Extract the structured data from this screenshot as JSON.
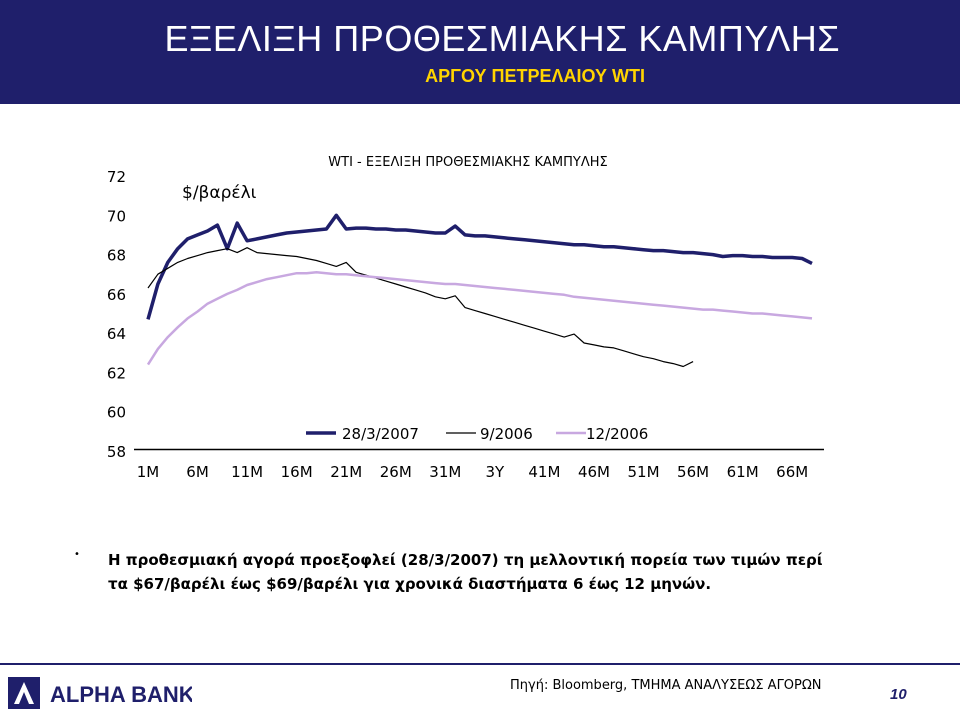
{
  "slide": {
    "title": "ΕΞΕΛΙΞΗ ΠΡΟΘΕΣΜΙΑΚΗΣ ΚΑΜΠΥΛΗΣ",
    "subtitle": "ΑΡΓΟΥ ΠΕΤΡΕΛΑΙΟΥ WTI",
    "bullet": "•",
    "note": "Η προθεσμιακή αγορά προεξοφλεί (28/3/2007) τη μελλοντική πορεία των τιμών περί τα $67/βαρέλι έως $69/βαρέλι για χρονικά διαστήματα 6 έως 12 μηνών.",
    "source": "Πηγή: Bloomberg, ΤΜΗΜΑ ΑΝΑΛΥΣΕΩΣ ΑΓΟΡΩΝ",
    "page_number": "10",
    "logo_text": "ALPHA BANK"
  },
  "colors": {
    "header_bg": "#1f1f6b",
    "subtitle": "#ffd400",
    "series_2007": "#1f1f6b",
    "series_2006_09": "#000000",
    "series_2006_12": "#c8a8e0"
  },
  "chart_data": {
    "type": "line",
    "title": "WTI - ΕΞΕΛΙΞΗ ΠΡΟΘΕΣΜΙΑΚΗΣ ΚΑΜΠΥΛΗΣ",
    "ylabel": "$/βαρέλι",
    "ylim": [
      58,
      72
    ],
    "yticks": [
      58,
      60,
      62,
      64,
      66,
      68,
      70,
      72
    ],
    "xticks": [
      "1M",
      "6M",
      "11M",
      "16M",
      "21M",
      "26M",
      "31M",
      "3Y",
      "41M",
      "46M",
      "51M",
      "56M",
      "61M",
      "66M"
    ],
    "x_unit": "months",
    "x_range": [
      1,
      68
    ],
    "grid": false,
    "legend_position": "bottom",
    "series": [
      {
        "name": "28/3/2007",
        "color": "#1f1f6b",
        "x": [
          1,
          2,
          3,
          4,
          5,
          6,
          7,
          8,
          9,
          10,
          11,
          12,
          13,
          14,
          15,
          16,
          17,
          18,
          19,
          20,
          21,
          22,
          23,
          24,
          25,
          26,
          27,
          28,
          29,
          30,
          31,
          32,
          33,
          34,
          35,
          36,
          37,
          38,
          39,
          40,
          41,
          42,
          43,
          44,
          45,
          46,
          47,
          48,
          49,
          50,
          51,
          52,
          53,
          54,
          55,
          56,
          57,
          58,
          59,
          60,
          61,
          62,
          63,
          64,
          65,
          66,
          67,
          68
        ],
        "values": [
          64.7,
          66.5,
          67.6,
          68.3,
          68.8,
          69.0,
          69.2,
          69.5,
          68.3,
          69.6,
          68.7,
          68.8,
          68.9,
          69.0,
          69.1,
          69.15,
          69.2,
          69.25,
          69.3,
          70.0,
          69.3,
          69.35,
          69.35,
          69.3,
          69.3,
          69.25,
          69.25,
          69.2,
          69.15,
          69.1,
          69.1,
          69.45,
          69.0,
          68.95,
          68.95,
          68.9,
          68.85,
          68.8,
          68.75,
          68.7,
          68.65,
          68.6,
          68.55,
          68.5,
          68.5,
          68.45,
          68.4,
          68.4,
          68.35,
          68.3,
          68.25,
          68.2,
          68.2,
          68.15,
          68.1,
          68.1,
          68.05,
          68.0,
          67.9,
          67.95,
          67.95,
          67.9,
          67.9,
          67.85,
          67.85,
          67.85,
          67.8,
          67.55
        ]
      },
      {
        "name": "9/2006",
        "color": "#000000",
        "x": [
          1,
          2,
          3,
          4,
          5,
          6,
          7,
          8,
          9,
          10,
          11,
          12,
          13,
          14,
          15,
          16,
          17,
          18,
          19,
          20,
          21,
          22,
          23,
          24,
          25,
          26,
          27,
          28,
          29,
          30,
          31,
          32,
          33,
          34,
          35,
          36,
          37,
          38,
          39,
          40,
          41,
          42,
          43,
          44,
          45,
          46,
          47,
          48,
          49,
          50,
          51,
          52,
          53,
          54,
          55,
          56
        ],
        "values": [
          66.3,
          67.0,
          67.3,
          67.6,
          67.8,
          67.95,
          68.1,
          68.2,
          68.3,
          68.1,
          68.35,
          68.1,
          68.05,
          68.0,
          67.95,
          67.9,
          67.8,
          67.7,
          67.55,
          67.4,
          67.6,
          67.1,
          66.95,
          66.8,
          66.65,
          66.5,
          66.35,
          66.2,
          66.05,
          65.85,
          65.75,
          65.9,
          65.3,
          65.15,
          65.0,
          64.85,
          64.7,
          64.55,
          64.4,
          64.25,
          64.1,
          63.95,
          63.8,
          63.95,
          63.5,
          63.4,
          63.3,
          63.25,
          63.1,
          62.95,
          62.8,
          62.7,
          62.55,
          62.45,
          62.3,
          62.55
        ]
      },
      {
        "name": "12/2006",
        "color": "#c8a8e0",
        "x": [
          1,
          2,
          3,
          4,
          5,
          6,
          7,
          8,
          9,
          10,
          11,
          12,
          13,
          14,
          15,
          16,
          17,
          18,
          19,
          20,
          21,
          22,
          23,
          24,
          25,
          26,
          27,
          28,
          29,
          30,
          31,
          32,
          33,
          34,
          35,
          36,
          37,
          38,
          39,
          40,
          41,
          42,
          43,
          44,
          45,
          46,
          47,
          48,
          49,
          50,
          51,
          52,
          53,
          54,
          55,
          56,
          57,
          58,
          59,
          60,
          61,
          62,
          63,
          64,
          65,
          66,
          67,
          68
        ],
        "values": [
          62.4,
          63.2,
          63.8,
          64.3,
          64.75,
          65.1,
          65.5,
          65.75,
          66.0,
          66.2,
          66.45,
          66.6,
          66.75,
          66.85,
          66.95,
          67.05,
          67.05,
          67.1,
          67.05,
          67.0,
          67.0,
          66.95,
          66.9,
          66.85,
          66.8,
          66.75,
          66.7,
          66.65,
          66.6,
          66.55,
          66.5,
          66.5,
          66.45,
          66.4,
          66.35,
          66.3,
          66.25,
          66.2,
          66.15,
          66.1,
          66.05,
          66.0,
          65.95,
          65.85,
          65.8,
          65.75,
          65.7,
          65.65,
          65.6,
          65.55,
          65.5,
          65.45,
          65.4,
          65.35,
          65.3,
          65.25,
          65.2,
          65.2,
          65.15,
          65.1,
          65.05,
          65.0,
          65.0,
          64.95,
          64.9,
          64.85,
          64.8,
          64.75
        ]
      }
    ]
  }
}
